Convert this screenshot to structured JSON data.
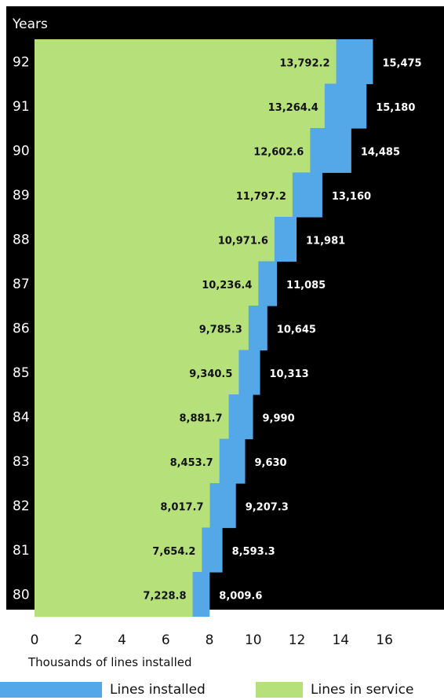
{
  "colors": {
    "installed": "#55a8e8",
    "service": "#b6e07a",
    "background": "#000000",
    "label_on_dark": "#ffffff",
    "label_on_light": "#111111"
  },
  "chart_data": {
    "type": "bar",
    "ylabel": "Years",
    "xlabel": "Thousands of lines installed",
    "xlim": [
      0,
      16
    ],
    "xticks": [
      "0",
      "2",
      "4",
      "6",
      "8",
      "10",
      "12",
      "14",
      "16"
    ],
    "categories": [
      "92",
      "91",
      "90",
      "89",
      "88",
      "87",
      "86",
      "85",
      "84",
      "83",
      "82",
      "81",
      "80"
    ],
    "series": [
      {
        "name": "Lines installed",
        "values": [
          15475,
          15180,
          14485,
          13160,
          11981,
          11085,
          10645,
          10313,
          9990,
          9630,
          9207.3,
          8593.3,
          8009.6
        ],
        "labels": [
          "15,475",
          "15,180",
          "14,485",
          "13,160",
          "11,981",
          "11,085",
          "10,645",
          "10,313",
          "9,990",
          "9,630",
          "9,207.3",
          "8,593.3",
          "8,009.6"
        ]
      },
      {
        "name": "Lines in service",
        "values": [
          13792.2,
          13264.4,
          12602.6,
          11797.2,
          10971.6,
          10236.4,
          9785.3,
          9340.5,
          8881.7,
          8453.7,
          8017.7,
          7654.2,
          7228.8
        ],
        "labels": [
          "13,792.2",
          "13,264.4",
          "12,602.6",
          "11,797.2",
          "10,971.6",
          "10,236.4",
          "9,785.3",
          "9,340.5",
          "8,881.7",
          "8,453.7",
          "8,017.7",
          "7,654.2",
          "7,228.8"
        ]
      }
    ],
    "legend": {
      "position": "bottom"
    }
  }
}
